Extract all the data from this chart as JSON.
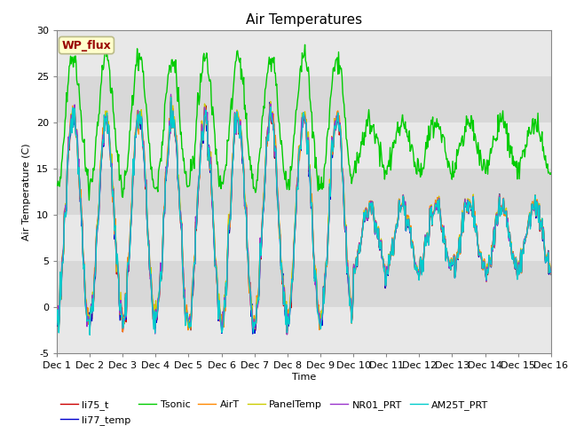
{
  "title": "Air Temperatures",
  "ylabel": "Air Temperature (C)",
  "xlabel": "Time",
  "ylim": [
    -5,
    30
  ],
  "xlim": [
    0,
    15
  ],
  "xtick_labels": [
    "Dec 1",
    "Dec 2",
    "Dec 3",
    "Dec 4",
    "Dec 5",
    "Dec 6",
    "Dec 7",
    "Dec 8",
    "Dec 9",
    "Dec 10",
    "Dec 11",
    "Dec 12",
    "Dec 13",
    "Dec 14",
    "Dec 15",
    "Dec 16"
  ],
  "xtick_positions": [
    0,
    1,
    2,
    3,
    4,
    5,
    6,
    7,
    8,
    9,
    10,
    11,
    12,
    13,
    14,
    15
  ],
  "ytick_positions": [
    -5,
    0,
    5,
    10,
    15,
    20,
    25,
    30
  ],
  "series": {
    "li75_t": {
      "color": "#cc0000",
      "lw": 1.0
    },
    "li77_temp": {
      "color": "#0000cc",
      "lw": 1.0
    },
    "Tsonic": {
      "color": "#00cc00",
      "lw": 1.0
    },
    "AirT": {
      "color": "#ff8800",
      "lw": 1.0
    },
    "PanelTemp": {
      "color": "#cccc00",
      "lw": 1.0
    },
    "NR01_PRT": {
      "color": "#9933cc",
      "lw": 1.0
    },
    "AM25T_PRT": {
      "color": "#00cccc",
      "lw": 1.0
    }
  },
  "legend_label": "WP_flux",
  "legend_text_color": "#990000",
  "legend_bg_color": "#ffffcc",
  "legend_edge_color": "#bbbb88",
  "fig_bg_color": "#ffffff",
  "band_colors": [
    "#e8e8e8",
    "#d8d8d8"
  ],
  "title_fontsize": 11,
  "axis_fontsize": 8,
  "tick_fontsize": 8
}
